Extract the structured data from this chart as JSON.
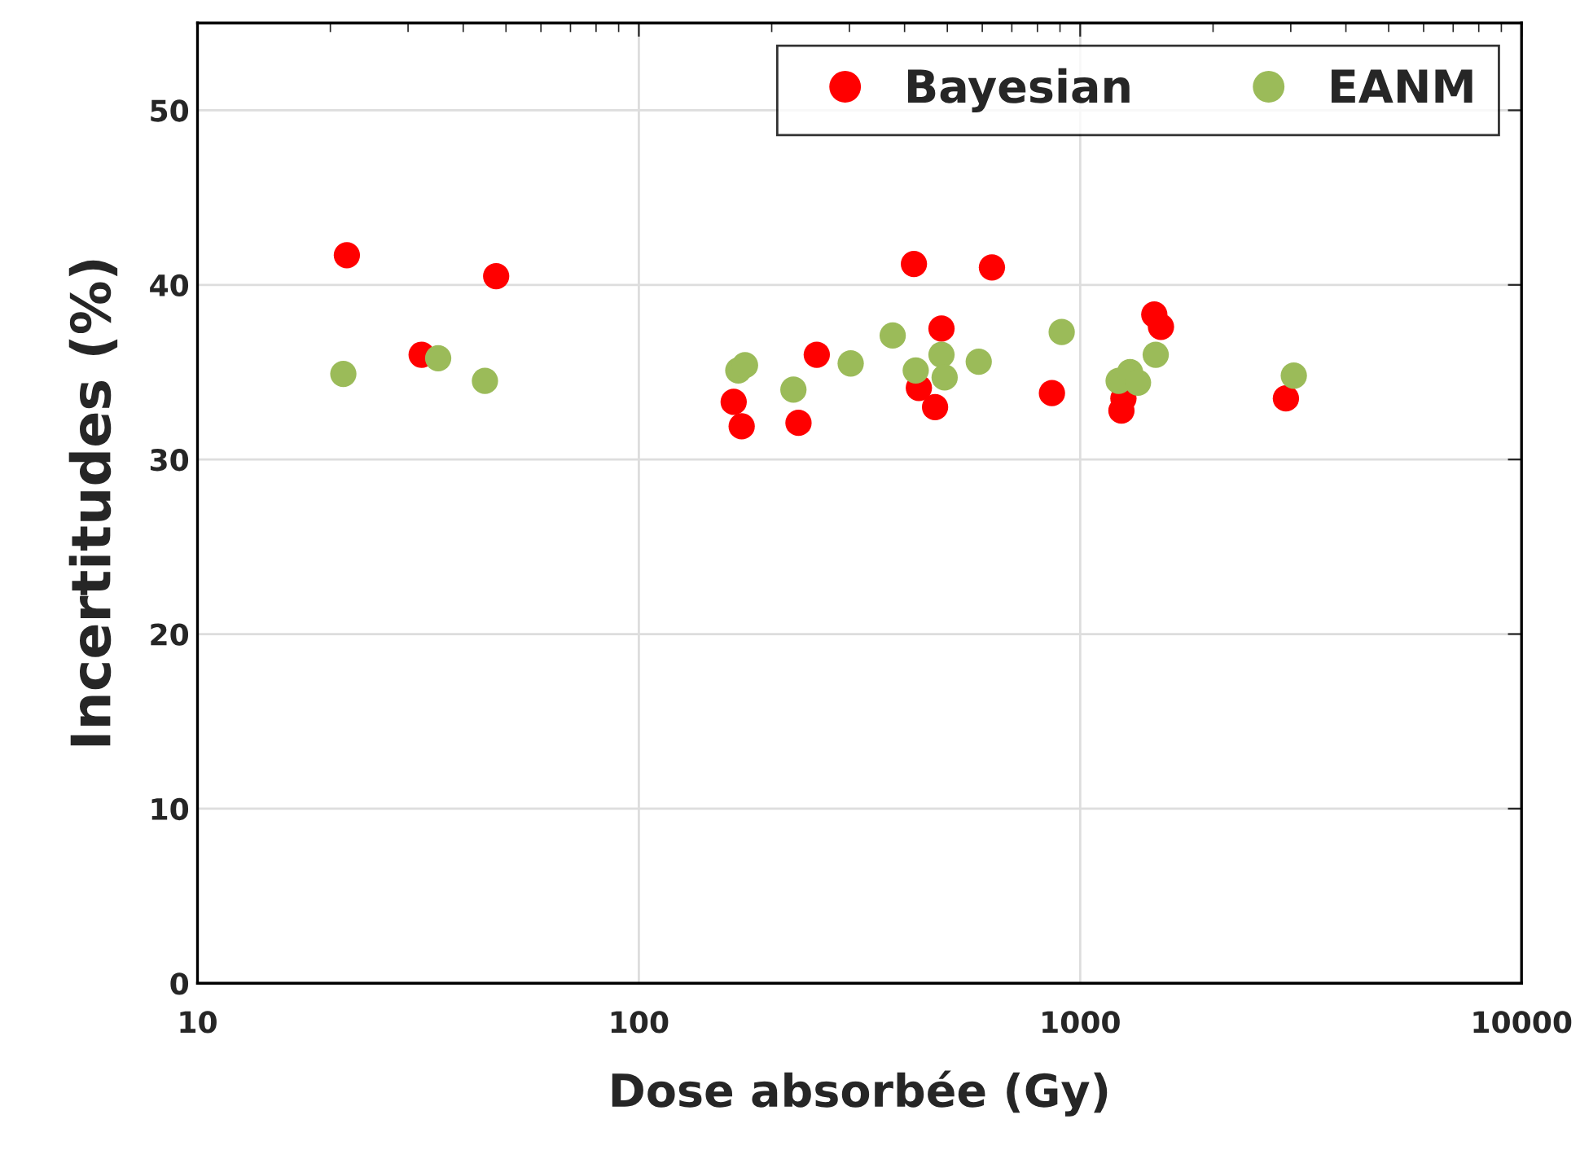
{
  "chart_data": {
    "type": "scatter",
    "xlabel": "Dose absorbée (Gy)",
    "ylabel": "Incertitudes (%)",
    "log": "x",
    "xlim": [
      10,
      10000
    ],
    "xticks": [
      10,
      100,
      1000,
      10000
    ],
    "ylim": [
      0,
      55
    ],
    "yticks": [
      0,
      10,
      20,
      30,
      40,
      50
    ],
    "grid": true,
    "legend": "top right",
    "marker": "circle",
    "series": [
      {
        "name": "Bayesian",
        "color": "#ff0000",
        "x": [
          21.8,
          47.5,
          32.2,
          164,
          171,
          230,
          253,
          420,
          631,
          485,
          431,
          469,
          863,
          1472,
          1524,
          1253,
          1240,
          2925
        ],
        "values": [
          41.7,
          40.5,
          36.0,
          33.3,
          31.9,
          32.1,
          36.0,
          41.2,
          41.0,
          37.5,
          34.1,
          33.0,
          33.8,
          38.3,
          37.6,
          33.5,
          32.8,
          33.5
        ]
      },
      {
        "name": "EANM",
        "color": "#9bbb59",
        "x": [
          21.4,
          35.1,
          44.8,
          168,
          174,
          224,
          302,
          376,
          485,
          424,
          493,
          589,
          908,
          1483,
          1222,
          1297,
          1352,
          3048
        ],
        "values": [
          34.9,
          35.8,
          34.5,
          35.1,
          35.4,
          34.0,
          35.5,
          37.1,
          36.0,
          35.1,
          34.7,
          35.6,
          37.3,
          36.0,
          34.5,
          35.0,
          34.4,
          34.8
        ]
      }
    ]
  }
}
